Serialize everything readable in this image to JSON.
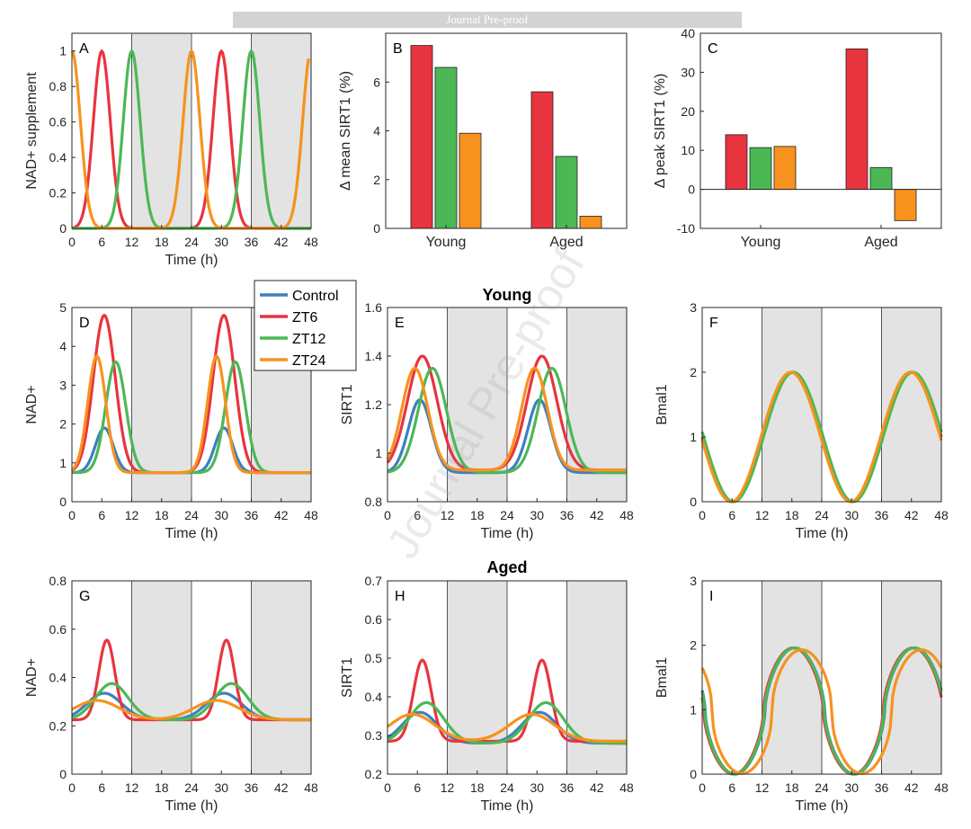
{
  "banner": "Journal Pre-proof",
  "watermark": "Journal Pre-proof",
  "colors": {
    "Control": "#3f7fbf",
    "ZT6": "#e8343f",
    "ZT12": "#4cb855",
    "ZT24": "#f7921e",
    "night": "#e3e3e3"
  },
  "row_titles": {
    "young": "Young",
    "aged": "Aged"
  },
  "legend": [
    "Control",
    "ZT6",
    "ZT12",
    "ZT24"
  ],
  "chart_data": [
    {
      "panel": "A",
      "type": "line",
      "xlabel": "Time (h)",
      "ylabel": "NAD+ supplement",
      "xlim": [
        0,
        48
      ],
      "ylim": [
        0,
        1.1
      ],
      "xticks": [
        0,
        6,
        12,
        18,
        24,
        30,
        36,
        42,
        48
      ],
      "yticks": [
        0,
        0.2,
        0.4,
        0.6,
        0.8,
        1
      ],
      "night_shading": [
        [
          12,
          24
        ],
        [
          36,
          48
        ]
      ],
      "series": [
        {
          "name": "ZT6",
          "peaks": [
            6,
            30
          ],
          "amp": 1,
          "base": 0,
          "width": 1.7
        },
        {
          "name": "ZT12",
          "peaks": [
            12,
            36
          ],
          "amp": 1,
          "base": 0,
          "width": 1.7
        },
        {
          "name": "ZT24",
          "peaks": [
            0,
            24,
            48
          ],
          "amp": 1,
          "base": 0,
          "width": 1.7,
          "x_end": 47.5
        }
      ]
    },
    {
      "panel": "B",
      "type": "bar",
      "xlabel": "",
      "ylabel": "Δ mean SIRT1 (%)",
      "categories": [
        "Young",
        "Aged"
      ],
      "ylim": [
        0,
        8
      ],
      "yticks": [
        0,
        2,
        4,
        6
      ],
      "series": [
        {
          "name": "ZT6",
          "values": [
            7.5,
            5.6
          ]
        },
        {
          "name": "ZT12",
          "values": [
            6.6,
            2.95
          ]
        },
        {
          "name": "ZT24",
          "values": [
            3.9,
            0.5
          ]
        }
      ]
    },
    {
      "panel": "C",
      "type": "bar",
      "xlabel": "",
      "ylabel": "Δ peak SIRT1 (%)",
      "categories": [
        "Young",
        "Aged"
      ],
      "ylim": [
        -10,
        40
      ],
      "yticks": [
        -10,
        0,
        10,
        20,
        30,
        40
      ],
      "series": [
        {
          "name": "ZT6",
          "values": [
            14,
            36
          ]
        },
        {
          "name": "ZT12",
          "values": [
            10.7,
            5.6
          ]
        },
        {
          "name": "ZT24",
          "values": [
            11,
            -8
          ]
        }
      ]
    },
    {
      "panel": "D",
      "type": "line",
      "xlabel": "Time (h)",
      "ylabel": "NAD+",
      "xlim": [
        0,
        48
      ],
      "ylim": [
        0,
        5
      ],
      "xticks": [
        0,
        6,
        12,
        18,
        24,
        30,
        36,
        42,
        48
      ],
      "yticks": [
        0,
        1,
        2,
        3,
        4,
        5
      ],
      "night_shading": [
        [
          12,
          24
        ],
        [
          36,
          48
        ]
      ],
      "series": [
        {
          "name": "Control",
          "peaks": [
            6.5,
            30.5
          ],
          "amp": 1.15,
          "base": 0.75,
          "width": 1.8
        },
        {
          "name": "ZT6",
          "peaks": [
            6.5,
            30.5
          ],
          "amp": 4.05,
          "base": 0.75,
          "width": 2.2
        },
        {
          "name": "ZT12",
          "peaks": [
            8.8,
            32.8
          ],
          "amp": 2.85,
          "base": 0.75,
          "width": 2.0
        },
        {
          "name": "ZT24",
          "peaks": [
            5.0,
            29.0
          ],
          "amp": 3.0,
          "base": 0.75,
          "width": 1.8
        }
      ]
    },
    {
      "panel": "E",
      "type": "line",
      "xlabel": "Time (h)",
      "ylabel": "SIRT1",
      "xlim": [
        0,
        48
      ],
      "ylim": [
        0.8,
        1.6
      ],
      "xticks": [
        0,
        6,
        12,
        18,
        24,
        30,
        36,
        42,
        48
      ],
      "yticks": [
        0.8,
        1,
        1.2,
        1.4,
        1.6
      ],
      "night_shading": [
        [
          12,
          24
        ],
        [
          36,
          48
        ]
      ],
      "series": [
        {
          "name": "Control",
          "peaks": [
            6.5,
            30.5
          ],
          "amp": 0.3,
          "base": 0.92,
          "width": 2.3
        },
        {
          "name": "ZT6",
          "peaks": [
            7.0,
            31.0
          ],
          "amp": 0.47,
          "base": 0.93,
          "width": 3.0
        },
        {
          "name": "ZT12",
          "peaks": [
            9.0,
            33.0
          ],
          "amp": 0.43,
          "base": 0.92,
          "width": 2.8
        },
        {
          "name": "ZT24",
          "peaks": [
            5.5,
            29.5
          ],
          "amp": 0.42,
          "base": 0.93,
          "width": 2.6
        }
      ]
    },
    {
      "panel": "F",
      "type": "line",
      "xlabel": "Time (h)",
      "ylabel": "Bmal1",
      "xlim": [
        0,
        48
      ],
      "ylim": [
        0,
        3
      ],
      "xticks": [
        0,
        6,
        12,
        18,
        24,
        30,
        36,
        42,
        48
      ],
      "yticks": [
        0,
        1,
        2,
        3
      ],
      "night_shading": [
        [
          12,
          24
        ],
        [
          36,
          48
        ]
      ],
      "series": [
        {
          "name": "Control",
          "sine": {
            "mean": 1.0,
            "amp": 1.0,
            "peak": 18
          }
        },
        {
          "name": "ZT6",
          "sine": {
            "mean": 1.0,
            "amp": 1.0,
            "peak": 18
          }
        },
        {
          "name": "ZT12",
          "sine": {
            "mean": 1.0,
            "amp": 1.0,
            "peak": 18.3
          }
        },
        {
          "name": "ZT24",
          "sine": {
            "mean": 1.0,
            "amp": 1.0,
            "peak": 17.8
          }
        }
      ]
    },
    {
      "panel": "G",
      "type": "line",
      "xlabel": "Time (h)",
      "ylabel": "NAD+",
      "xlim": [
        0,
        48
      ],
      "ylim": [
        0,
        0.8
      ],
      "xticks": [
        0,
        6,
        12,
        18,
        24,
        30,
        36,
        42,
        48
      ],
      "yticks": [
        0,
        0.2,
        0.4,
        0.6,
        0.8
      ],
      "night_shading": [
        [
          12,
          24
        ],
        [
          36,
          48
        ]
      ],
      "series": [
        {
          "name": "Control",
          "peaks": [
            6.5,
            30.5
          ],
          "amp": 0.11,
          "base": 0.225,
          "width": 3.5
        },
        {
          "name": "ZT6",
          "peaks": [
            7.0,
            31.0
          ],
          "amp": 0.33,
          "base": 0.225,
          "width": 1.6
        },
        {
          "name": "ZT12",
          "peaks": [
            8.0,
            32.0
          ],
          "amp": 0.15,
          "base": 0.225,
          "width": 3.3
        },
        {
          "name": "ZT24",
          "peaks": [
            5.0,
            29.0
          ],
          "amp": 0.08,
          "base": 0.225,
          "width": 4.5
        }
      ]
    },
    {
      "panel": "H",
      "type": "line",
      "xlabel": "Time (h)",
      "ylabel": "SIRT1",
      "xlim": [
        0,
        48
      ],
      "ylim": [
        0.2,
        0.7
      ],
      "xticks": [
        0,
        6,
        12,
        18,
        24,
        30,
        36,
        42,
        48
      ],
      "yticks": [
        0.2,
        0.3,
        0.4,
        0.5,
        0.6,
        0.7
      ],
      "night_shading": [
        [
          12,
          24
        ],
        [
          36,
          48
        ]
      ],
      "series": [
        {
          "name": "Control",
          "peaks": [
            6.5,
            30.5
          ],
          "amp": 0.08,
          "base": 0.28,
          "width": 3.5
        },
        {
          "name": "ZT6",
          "peaks": [
            7.0,
            31.0
          ],
          "amp": 0.21,
          "base": 0.285,
          "width": 1.8
        },
        {
          "name": "ZT12",
          "peaks": [
            7.8,
            31.8
          ],
          "amp": 0.105,
          "base": 0.28,
          "width": 3.5
        },
        {
          "name": "ZT24",
          "peaks": [
            5.0,
            29.0
          ],
          "amp": 0.07,
          "base": 0.285,
          "width": 4.5
        }
      ]
    },
    {
      "panel": "I",
      "type": "line",
      "xlabel": "Time (h)",
      "ylabel": "Bmal1",
      "xlim": [
        0,
        48
      ],
      "ylim": [
        0,
        3
      ],
      "xticks": [
        0,
        6,
        12,
        18,
        24,
        30,
        36,
        42,
        48
      ],
      "yticks": [
        0,
        1,
        2,
        3
      ],
      "night_shading": [
        [
          12,
          24
        ],
        [
          36,
          48
        ]
      ],
      "series": [
        {
          "name": "Control",
          "sine": {
            "mean": 0.98,
            "amp": 0.98,
            "peak": 18.6,
            "sharp": 0.6
          }
        },
        {
          "name": "ZT6",
          "sine": {
            "mean": 0.98,
            "amp": 0.98,
            "peak": 18.3,
            "sharp": 0.6
          }
        },
        {
          "name": "ZT12",
          "sine": {
            "mean": 0.98,
            "amp": 0.98,
            "peak": 18.5,
            "sharp": 0.6
          }
        },
        {
          "name": "ZT24",
          "sine": {
            "mean": 0.97,
            "amp": 0.96,
            "peak": 20.0,
            "sharp": 0.5
          }
        }
      ]
    }
  ]
}
